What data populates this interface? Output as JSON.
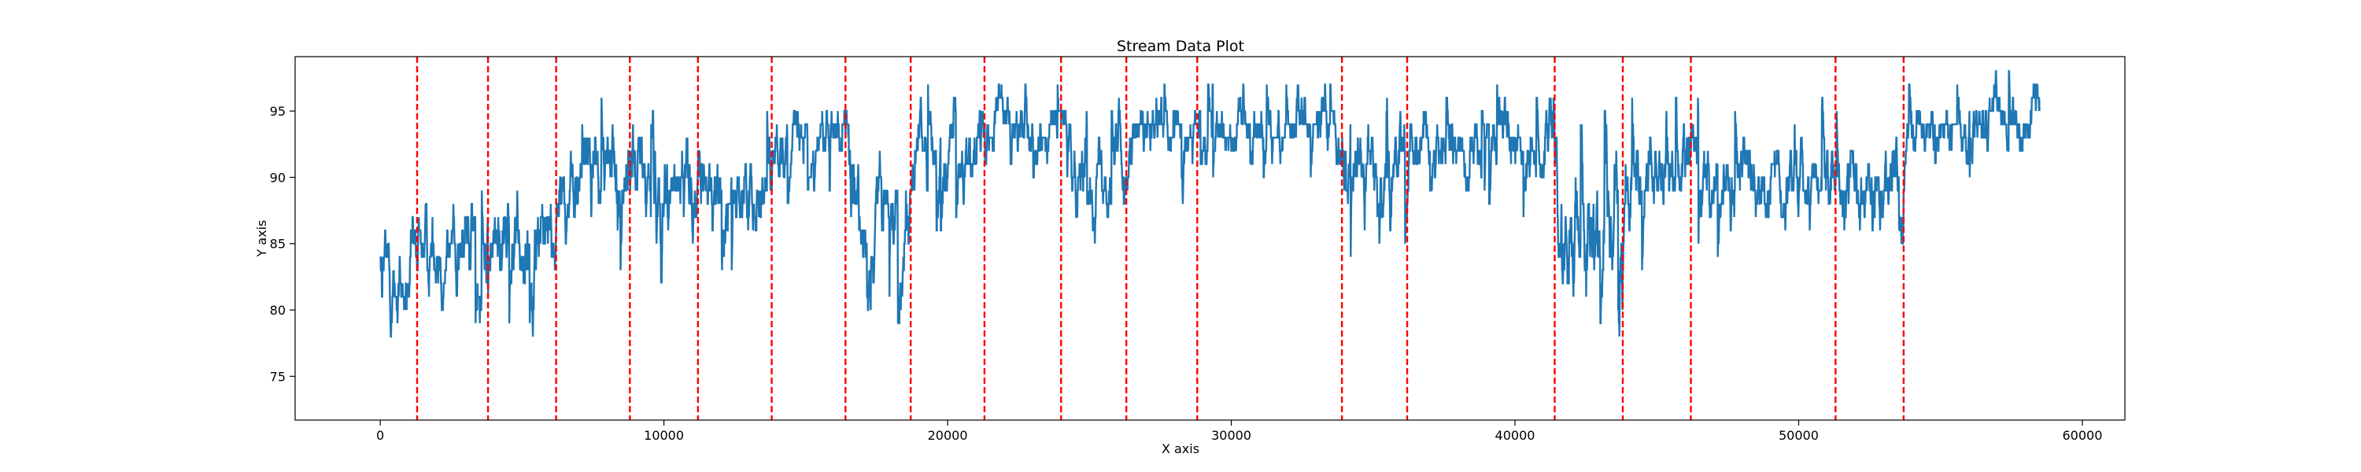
{
  "chart_data": {
    "type": "line",
    "title": "Stream Data Plot",
    "xlabel": "X axis",
    "ylabel": "Y axis",
    "xlim": [
      -3000,
      61500
    ],
    "ylim": [
      71.7,
      99.1
    ],
    "xticks": [
      0,
      10000,
      20000,
      30000,
      40000,
      50000,
      60000
    ],
    "yticks": [
      75,
      80,
      85,
      90,
      95
    ],
    "grid": false,
    "line_color": "#1f77b4",
    "vline_color": "#ff0000",
    "vlines_style": "dashed",
    "change_points": [
      1300,
      3800,
      6200,
      8800,
      11200,
      13800,
      16400,
      18700,
      21300,
      24000,
      26300,
      28800,
      33900,
      36200,
      41400,
      43800,
      46200,
      51300,
      53700
    ],
    "segments": [
      {
        "x_start": 0,
        "x_end": 1300,
        "level": 82,
        "noise": 4,
        "vmin": 75,
        "vmax": 90,
        "start": 86
      },
      {
        "x_start": 1300,
        "x_end": 3800,
        "level": 85,
        "noise": 3.5,
        "vmin": 79,
        "vmax": 91
      },
      {
        "x_start": 3800,
        "x_end": 6200,
        "level": 86,
        "noise": 4,
        "vmin": 77,
        "vmax": 94
      },
      {
        "x_start": 6200,
        "x_end": 8800,
        "level": 90,
        "noise": 3.5,
        "vmin": 80,
        "vmax": 96
      },
      {
        "x_start": 8800,
        "x_end": 11200,
        "level": 90,
        "noise": 4,
        "vmin": 77,
        "vmax": 96
      },
      {
        "x_start": 11200,
        "x_end": 13800,
        "level": 89,
        "noise": 3,
        "vmin": 82,
        "vmax": 96
      },
      {
        "x_start": 13800,
        "x_end": 16400,
        "level": 93,
        "noise": 2.5,
        "vmin": 88,
        "vmax": 97
      },
      {
        "x_start": 16400,
        "x_end": 18700,
        "level": 87,
        "noise": 4,
        "vmin": 78,
        "vmax": 97
      },
      {
        "x_start": 18700,
        "x_end": 21300,
        "level": 92,
        "noise": 3,
        "vmin": 85,
        "vmax": 97
      },
      {
        "x_start": 21300,
        "x_end": 24000,
        "level": 94,
        "noise": 2.2,
        "vmin": 88,
        "vmax": 97
      },
      {
        "x_start": 24000,
        "x_end": 26300,
        "level": 91,
        "noise": 3,
        "vmin": 85,
        "vmax": 97
      },
      {
        "x_start": 26300,
        "x_end": 28800,
        "level": 93,
        "noise": 2.5,
        "vmin": 82,
        "vmax": 97
      },
      {
        "x_start": 28800,
        "x_end": 33900,
        "level": 94,
        "noise": 2.2,
        "vmin": 88,
        "vmax": 97
      },
      {
        "x_start": 33900,
        "x_end": 36200,
        "level": 91,
        "noise": 3.5,
        "vmin": 81,
        "vmax": 97
      },
      {
        "x_start": 36200,
        "x_end": 41400,
        "level": 92,
        "noise": 2.5,
        "vmin": 87,
        "vmax": 97
      },
      {
        "x_start": 41400,
        "x_end": 43800,
        "level": 86,
        "noise": 5,
        "vmin": 73,
        "vmax": 98
      },
      {
        "x_start": 43800,
        "x_end": 46200,
        "level": 90,
        "noise": 3.5,
        "vmin": 83,
        "vmax": 97
      },
      {
        "x_start": 46200,
        "x_end": 51300,
        "level": 90,
        "noise": 3,
        "vmin": 82,
        "vmax": 97
      },
      {
        "x_start": 51300,
        "x_end": 53700,
        "level": 90,
        "noise": 3.5,
        "vmin": 82,
        "vmax": 98
      },
      {
        "x_start": 53700,
        "x_end": 58500,
        "level": 94,
        "noise": 2.2,
        "vmin": 89,
        "vmax": 98
      }
    ]
  }
}
